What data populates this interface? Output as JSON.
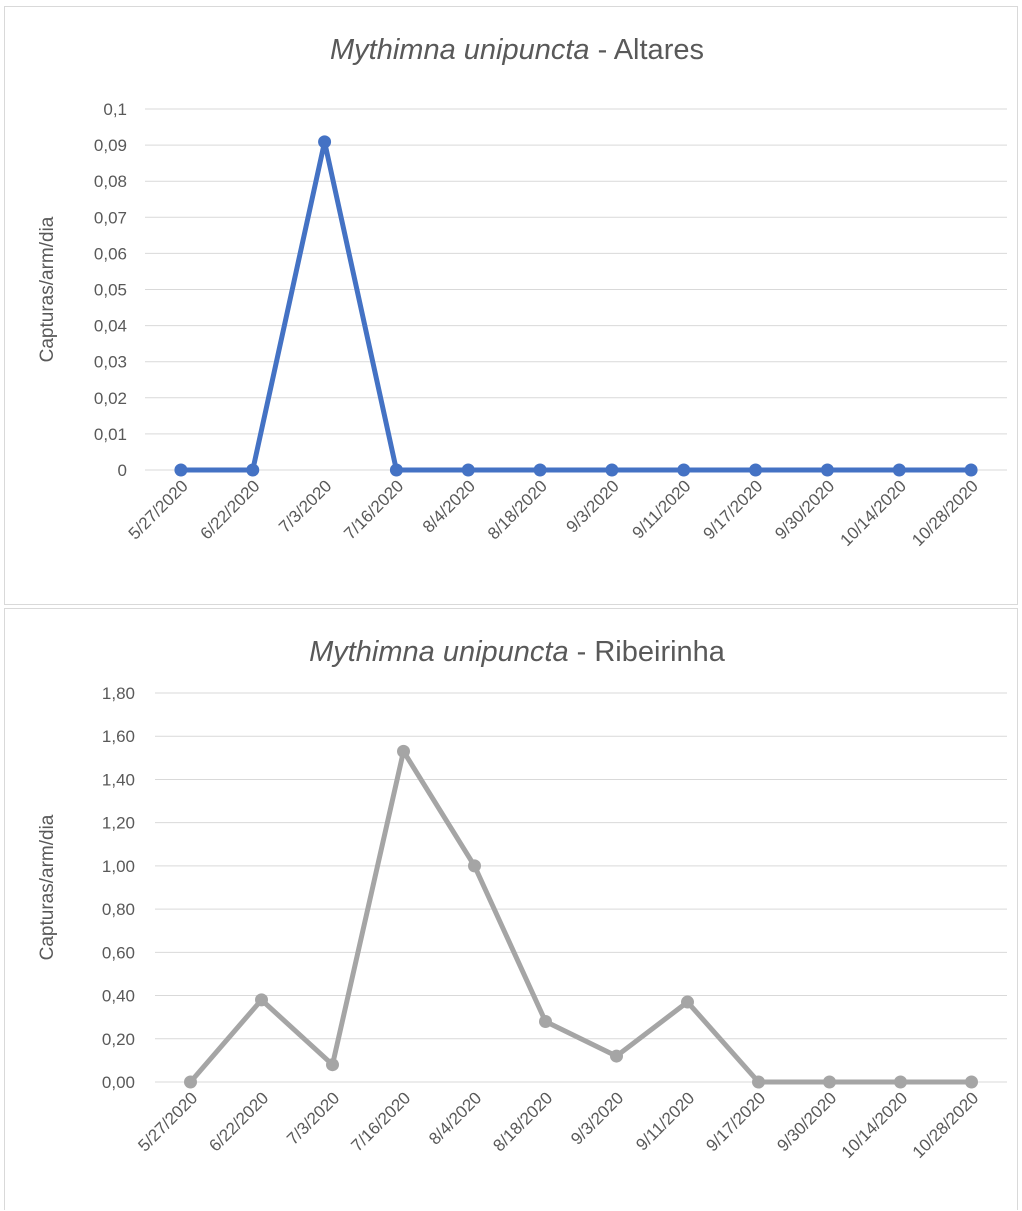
{
  "chart_data": [
    {
      "type": "line",
      "title": "Mythimna unipuncta - Altares",
      "title_italic": "Mythimna unipuncta",
      "title_rest": " - Altares",
      "ylabel": "Capturas/arm/dia",
      "ylim": [
        0,
        0.1
      ],
      "yticks": [
        "0",
        "0,01",
        "0,02",
        "0,03",
        "0,04",
        "0,05",
        "0,06",
        "0,07",
        "0,08",
        "0,09",
        "0,1"
      ],
      "categories": [
        "5/27/2020",
        "6/22/2020",
        "7/3/2020",
        "7/16/2020",
        "8/4/2020",
        "8/18/2020",
        "9/3/2020",
        "9/11/2020",
        "9/17/2020",
        "9/30/2020",
        "10/14/2020",
        "10/28/2020"
      ],
      "series": [
        {
          "values": [
            0,
            0,
            0.0909,
            0,
            0,
            0,
            0,
            0,
            0,
            0,
            0,
            0
          ],
          "color": "#4472c4"
        }
      ],
      "grid": true,
      "legend": "none"
    },
    {
      "type": "line",
      "title": "Mythimna unipuncta - Ribeirinha",
      "title_italic": "Mythimna unipuncta",
      "title_rest": " - Ribeirinha",
      "ylabel": "Capturas/arm/dia",
      "ylim": [
        0,
        1.8
      ],
      "yticks": [
        "0,00",
        "0,20",
        "0,40",
        "0,60",
        "0,80",
        "1,00",
        "1,20",
        "1,40",
        "1,60",
        "1,80"
      ],
      "categories": [
        "5/27/2020",
        "6/22/2020",
        "7/3/2020",
        "7/16/2020",
        "8/4/2020",
        "8/18/2020",
        "9/3/2020",
        "9/11/2020",
        "9/17/2020",
        "9/30/2020",
        "10/14/2020",
        "10/28/2020"
      ],
      "series": [
        {
          "values": [
            0,
            0.38,
            0.08,
            1.53,
            1.0,
            0.28,
            0.12,
            0.37,
            0,
            0,
            0,
            0
          ],
          "color": "#a5a5a5"
        }
      ],
      "grid": true,
      "legend": "none"
    }
  ]
}
